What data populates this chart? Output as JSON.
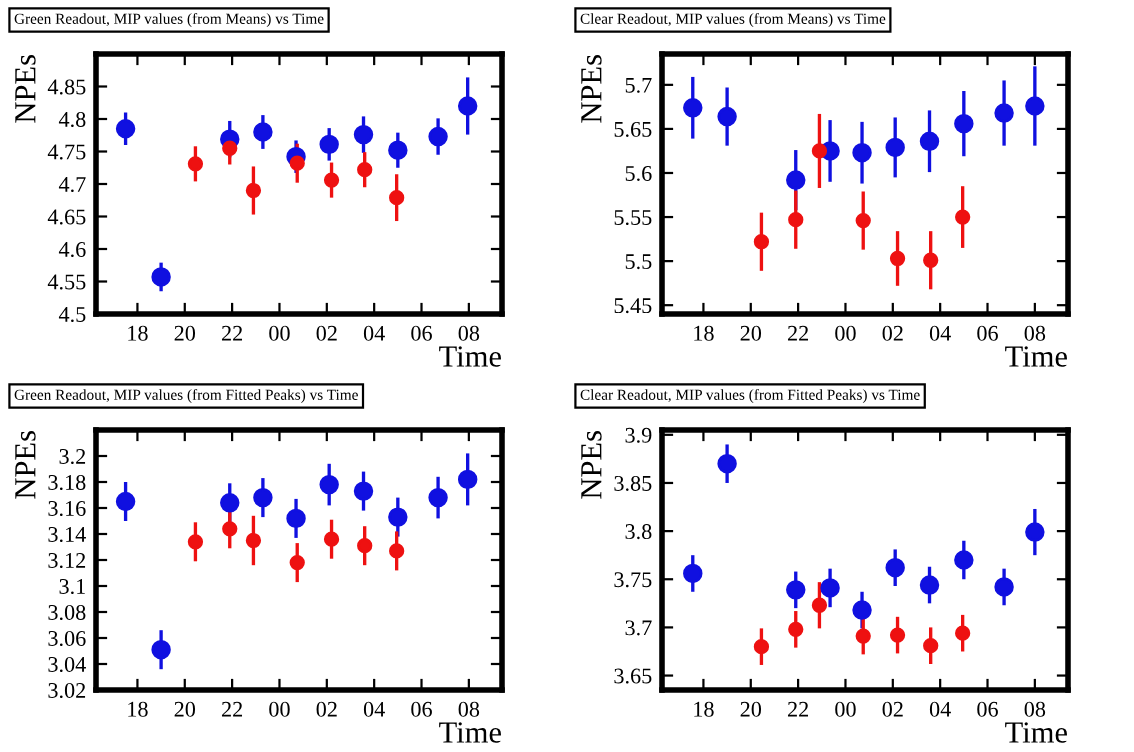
{
  "chart_data": [
    {
      "type": "scatter",
      "title": "Green Readout, MIP values (from Means) vs Time",
      "xlabel": "Time",
      "ylabel": "NPEs",
      "marker": "circle",
      "grid": false,
      "legend": false,
      "xlim": [
        "2000-01-01T16:15",
        "2000-01-02T09:24"
      ],
      "xticks": [
        {
          "value": "2000-01-01T18:00",
          "label": "18"
        },
        {
          "value": "2000-01-01T20:00",
          "label": "20"
        },
        {
          "value": "2000-01-01T22:00",
          "label": "22"
        },
        {
          "value": "2000-01-02T00:00",
          "label": "00"
        },
        {
          "value": "2000-01-02T02:00",
          "label": "02"
        },
        {
          "value": "2000-01-02T04:00",
          "label": "04"
        },
        {
          "value": "2000-01-02T06:00",
          "label": "06"
        },
        {
          "value": "2000-01-02T08:00",
          "label": "08"
        }
      ],
      "ylim": [
        4.5,
        4.9
      ],
      "yticks": [
        4.5,
        4.55,
        4.6,
        4.65,
        4.7,
        4.75,
        4.8,
        4.85
      ],
      "series": [
        {
          "color": "#1010e0",
          "x": [
            "2000-01-01T17:30",
            "2000-01-01T19:00",
            "2000-01-01T21:54",
            "2000-01-01T23:18",
            "2000-01-02T00:42",
            "2000-01-02T02:06",
            "2000-01-02T03:33",
            "2000-01-02T05:00",
            "2000-01-02T06:42",
            "2000-01-02T07:57"
          ],
          "values": [
            4.785,
            4.557,
            4.769,
            4.78,
            4.742,
            4.761,
            4.776,
            4.752,
            4.773,
            4.82
          ],
          "errors": [
            0.025,
            0.022,
            0.028,
            0.026,
            0.025,
            0.025,
            0.028,
            0.027,
            0.028,
            0.044
          ]
        },
        {
          "color": "#ee1111",
          "x": [
            "2000-01-01T20:27",
            "2000-01-01T21:54",
            "2000-01-01T22:54",
            "2000-01-02T00:45",
            "2000-01-02T02:12",
            "2000-01-02T03:36",
            "2000-01-02T04:57"
          ],
          "values": [
            4.731,
            4.755,
            4.69,
            4.732,
            4.706,
            4.722,
            4.679
          ],
          "errors": [
            0.027,
            0.025,
            0.037,
            0.03,
            0.027,
            0.027,
            0.036
          ]
        }
      ]
    },
    {
      "type": "scatter",
      "title": "Clear Readout, MIP values (from Means) vs Time",
      "xlabel": "Time",
      "ylabel": "NPEs",
      "marker": "circle",
      "grid": false,
      "legend": false,
      "xlim": [
        "2000-01-01T16:15",
        "2000-01-02T09:24"
      ],
      "xticks": [
        {
          "value": "2000-01-01T18:00",
          "label": "18"
        },
        {
          "value": "2000-01-01T20:00",
          "label": "20"
        },
        {
          "value": "2000-01-01T22:00",
          "label": "22"
        },
        {
          "value": "2000-01-02T00:00",
          "label": "00"
        },
        {
          "value": "2000-01-02T02:00",
          "label": "02"
        },
        {
          "value": "2000-01-02T04:00",
          "label": "04"
        },
        {
          "value": "2000-01-02T06:00",
          "label": "06"
        },
        {
          "value": "2000-01-02T08:00",
          "label": "08"
        }
      ],
      "ylim": [
        5.44,
        5.735
      ],
      "yticks": [
        5.45,
        5.5,
        5.55,
        5.6,
        5.65,
        5.7
      ],
      "series": [
        {
          "color": "#1010e0",
          "x": [
            "2000-01-01T17:33",
            "2000-01-01T19:00",
            "2000-01-01T21:54",
            "2000-01-01T23:21",
            "2000-01-02T00:42",
            "2000-01-02T02:06",
            "2000-01-02T03:33",
            "2000-01-02T05:00",
            "2000-01-02T06:42",
            "2000-01-02T08:00"
          ],
          "values": [
            5.674,
            5.664,
            5.592,
            5.625,
            5.623,
            5.629,
            5.636,
            5.656,
            5.668,
            5.676
          ],
          "errors": [
            0.035,
            0.033,
            0.034,
            0.035,
            0.035,
            0.034,
            0.035,
            0.037,
            0.037,
            0.045
          ]
        },
        {
          "color": "#ee1111",
          "x": [
            "2000-01-01T20:27",
            "2000-01-01T21:54",
            "2000-01-01T22:54",
            "2000-01-02T00:45",
            "2000-01-02T02:12",
            "2000-01-02T03:36",
            "2000-01-02T04:57"
          ],
          "values": [
            5.522,
            5.547,
            5.625,
            5.546,
            5.503,
            5.501,
            5.55
          ],
          "errors": [
            0.033,
            0.033,
            0.042,
            0.033,
            0.031,
            0.033,
            0.035
          ]
        }
      ]
    },
    {
      "type": "scatter",
      "title": "Green Readout, MIP values (from Fitted Peaks) vs Time",
      "xlabel": "Time",
      "ylabel": "NPEs",
      "marker": "circle",
      "grid": false,
      "legend": false,
      "xlim": [
        "2000-01-01T16:15",
        "2000-01-02T09:24"
      ],
      "xticks": [
        {
          "value": "2000-01-01T18:00",
          "label": "18"
        },
        {
          "value": "2000-01-01T20:00",
          "label": "20"
        },
        {
          "value": "2000-01-01T22:00",
          "label": "22"
        },
        {
          "value": "2000-01-02T00:00",
          "label": "00"
        },
        {
          "value": "2000-01-02T02:00",
          "label": "02"
        },
        {
          "value": "2000-01-02T04:00",
          "label": "04"
        },
        {
          "value": "2000-01-02T06:00",
          "label": "06"
        },
        {
          "value": "2000-01-02T08:00",
          "label": "08"
        }
      ],
      "ylim": [
        3.02,
        3.22
      ],
      "yticks": [
        3.02,
        3.04,
        3.06,
        3.08,
        3.1,
        3.12,
        3.14,
        3.16,
        3.18,
        3.2
      ],
      "series": [
        {
          "color": "#1010e0",
          "x": [
            "2000-01-01T17:30",
            "2000-01-01T19:00",
            "2000-01-01T21:54",
            "2000-01-01T23:18",
            "2000-01-02T00:42",
            "2000-01-02T02:06",
            "2000-01-02T03:33",
            "2000-01-02T05:00",
            "2000-01-02T06:42",
            "2000-01-02T07:57"
          ],
          "values": [
            3.165,
            3.051,
            3.164,
            3.168,
            3.152,
            3.178,
            3.173,
            3.153,
            3.168,
            3.182
          ],
          "errors": [
            0.015,
            0.015,
            0.015,
            0.015,
            0.015,
            0.016,
            0.015,
            0.015,
            0.016,
            0.02
          ]
        },
        {
          "color": "#ee1111",
          "x": [
            "2000-01-01T20:27",
            "2000-01-01T21:54",
            "2000-01-01T22:54",
            "2000-01-02T00:45",
            "2000-01-02T02:12",
            "2000-01-02T03:36",
            "2000-01-02T04:57"
          ],
          "values": [
            3.134,
            3.144,
            3.135,
            3.118,
            3.136,
            3.131,
            3.127
          ],
          "errors": [
            0.015,
            0.015,
            0.019,
            0.015,
            0.015,
            0.015,
            0.015
          ]
        }
      ]
    },
    {
      "type": "scatter",
      "title": "Clear Readout, MIP values (from Fitted Peaks) vs Time",
      "xlabel": "Time",
      "ylabel": "NPEs",
      "marker": "circle",
      "grid": false,
      "legend": false,
      "xlim": [
        "2000-01-01T16:15",
        "2000-01-02T09:24"
      ],
      "xticks": [
        {
          "value": "2000-01-01T18:00",
          "label": "18"
        },
        {
          "value": "2000-01-01T20:00",
          "label": "20"
        },
        {
          "value": "2000-01-01T22:00",
          "label": "22"
        },
        {
          "value": "2000-01-02T00:00",
          "label": "00"
        },
        {
          "value": "2000-01-02T02:00",
          "label": "02"
        },
        {
          "value": "2000-01-02T04:00",
          "label": "04"
        },
        {
          "value": "2000-01-02T06:00",
          "label": "06"
        },
        {
          "value": "2000-01-02T08:00",
          "label": "08"
        }
      ],
      "ylim": [
        3.635,
        3.905
      ],
      "yticks": [
        3.65,
        3.7,
        3.75,
        3.8,
        3.85,
        3.9
      ],
      "series": [
        {
          "color": "#1010e0",
          "x": [
            "2000-01-01T17:33",
            "2000-01-01T19:00",
            "2000-01-01T21:54",
            "2000-01-01T23:21",
            "2000-01-02T00:42",
            "2000-01-02T02:06",
            "2000-01-02T03:33",
            "2000-01-02T05:00",
            "2000-01-02T06:42",
            "2000-01-02T08:00"
          ],
          "values": [
            3.756,
            3.87,
            3.739,
            3.741,
            3.718,
            3.762,
            3.744,
            3.77,
            3.742,
            3.799
          ],
          "errors": [
            0.019,
            0.02,
            0.019,
            0.02,
            0.019,
            0.019,
            0.019,
            0.02,
            0.019,
            0.024
          ]
        },
        {
          "color": "#ee1111",
          "x": [
            "2000-01-01T20:27",
            "2000-01-01T21:54",
            "2000-01-01T22:54",
            "2000-01-02T00:45",
            "2000-01-02T02:12",
            "2000-01-02T03:36",
            "2000-01-02T04:57"
          ],
          "values": [
            3.68,
            3.698,
            3.723,
            3.691,
            3.692,
            3.681,
            3.694
          ],
          "errors": [
            0.019,
            0.019,
            0.024,
            0.019,
            0.019,
            0.019,
            0.019
          ]
        }
      ]
    }
  ]
}
